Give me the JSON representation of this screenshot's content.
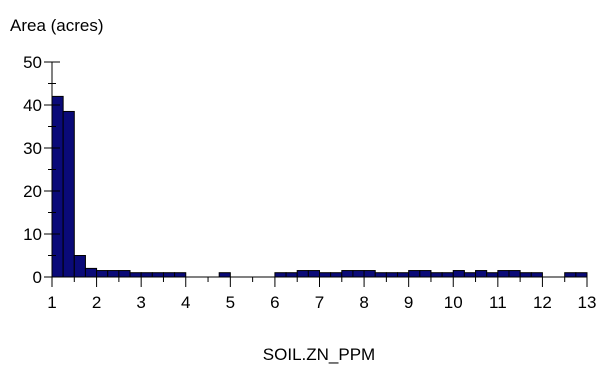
{
  "chart_data": {
    "type": "bar",
    "ylabel": "Area (acres)",
    "xlabel": "SOIL.ZN_PPM",
    "xlim": [
      1,
      13
    ],
    "ylim": [
      0,
      50
    ],
    "x_ticks": [
      "1",
      "2",
      "3",
      "4",
      "5",
      "6",
      "7",
      "8",
      "9",
      "10",
      "11",
      "12",
      "13"
    ],
    "y_ticks": [
      "0",
      "10",
      "20",
      "30",
      "40",
      "50"
    ],
    "bin_width": 0.25,
    "bar_color": "#0a0a78",
    "bins": [
      {
        "x0": 1.0,
        "value": 42
      },
      {
        "x0": 1.25,
        "value": 38.5
      },
      {
        "x0": 1.5,
        "value": 5
      },
      {
        "x0": 1.75,
        "value": 2
      },
      {
        "x0": 2.0,
        "value": 1.5
      },
      {
        "x0": 2.25,
        "value": 1.5
      },
      {
        "x0": 2.5,
        "value": 1.5
      },
      {
        "x0": 2.75,
        "value": 1
      },
      {
        "x0": 3.0,
        "value": 1
      },
      {
        "x0": 3.25,
        "value": 1
      },
      {
        "x0": 3.5,
        "value": 1
      },
      {
        "x0": 3.75,
        "value": 1
      },
      {
        "x0": 4.75,
        "value": 1
      },
      {
        "x0": 6.0,
        "value": 1
      },
      {
        "x0": 6.25,
        "value": 1
      },
      {
        "x0": 6.5,
        "value": 1.5
      },
      {
        "x0": 6.75,
        "value": 1.5
      },
      {
        "x0": 7.0,
        "value": 1
      },
      {
        "x0": 7.25,
        "value": 1
      },
      {
        "x0": 7.5,
        "value": 1.5
      },
      {
        "x0": 7.75,
        "value": 1.5
      },
      {
        "x0": 8.0,
        "value": 1.5
      },
      {
        "x0": 8.25,
        "value": 1
      },
      {
        "x0": 8.5,
        "value": 1
      },
      {
        "x0": 8.75,
        "value": 1
      },
      {
        "x0": 9.0,
        "value": 1.5
      },
      {
        "x0": 9.25,
        "value": 1.5
      },
      {
        "x0": 9.5,
        "value": 1
      },
      {
        "x0": 9.75,
        "value": 1
      },
      {
        "x0": 10.0,
        "value": 1.5
      },
      {
        "x0": 10.25,
        "value": 1
      },
      {
        "x0": 10.5,
        "value": 1.5
      },
      {
        "x0": 10.75,
        "value": 1
      },
      {
        "x0": 11.0,
        "value": 1.5
      },
      {
        "x0": 11.25,
        "value": 1.5
      },
      {
        "x0": 11.5,
        "value": 1
      },
      {
        "x0": 11.75,
        "value": 1
      },
      {
        "x0": 12.5,
        "value": 1
      },
      {
        "x0": 12.75,
        "value": 1
      }
    ]
  }
}
